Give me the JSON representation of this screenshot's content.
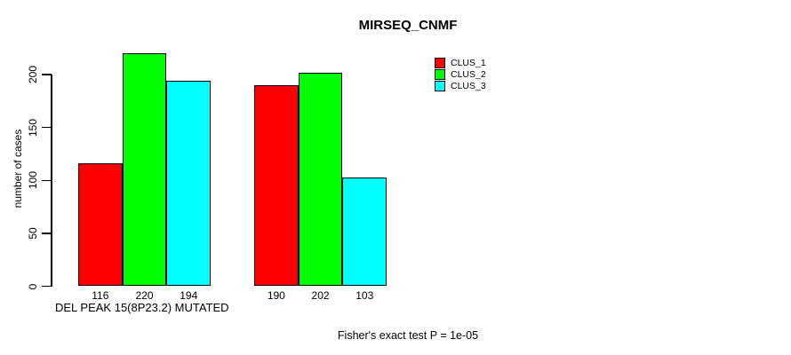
{
  "title": "MIRSEQ_CNMF",
  "y_axis": {
    "label": "number of cases",
    "ticks": [
      0,
      50,
      100,
      150,
      200
    ]
  },
  "x_annotation": "DEL PEAK 15(8P23.2) MUTATED",
  "footnote": "Fisher's exact test P = 1e-05",
  "legend": {
    "items": [
      {
        "label": "CLUS_1",
        "color": "#ff0000"
      },
      {
        "label": "CLUS_2",
        "color": "#00ff00"
      },
      {
        "label": "CLUS_3",
        "color": "#00ffff"
      }
    ]
  },
  "chart_data": {
    "type": "bar",
    "title": "MIRSEQ_CNMF",
    "ylabel": "number of cases",
    "xlabel": "DEL PEAK 15(8P23.2) MUTATED",
    "annotation": "Fisher's exact test P = 1e-05",
    "yticks": [
      0,
      50,
      100,
      150,
      200
    ],
    "ylim": [
      0,
      230
    ],
    "grid": false,
    "legend_position": "top-right",
    "bar_labels": "values shown under each bar",
    "groups": 2,
    "series": [
      {
        "name": "CLUS_1",
        "color": "#ff0000",
        "values": [
          116,
          190
        ]
      },
      {
        "name": "CLUS_2",
        "color": "#00ff00",
        "values": [
          220,
          202
        ]
      },
      {
        "name": "CLUS_3",
        "color": "#00ffff",
        "values": [
          194,
          103
        ]
      }
    ]
  }
}
